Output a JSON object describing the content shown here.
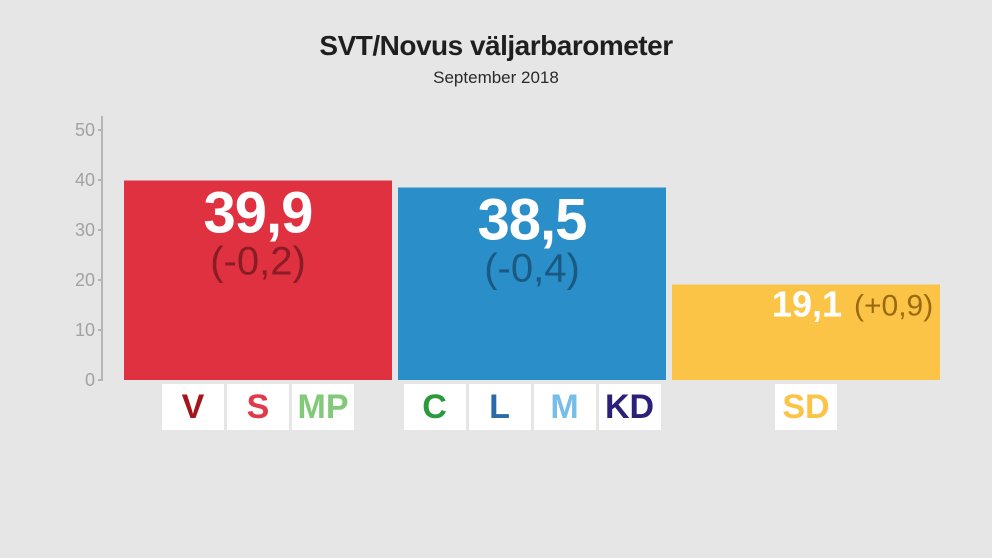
{
  "chart_data": {
    "type": "bar",
    "title": "SVT/Novus väljarbarometer",
    "subtitle": "September 2018",
    "xlabel": "",
    "ylabel": "",
    "ylim": [
      0,
      50
    ],
    "yticks": [
      "0",
      "10",
      "20",
      "30",
      "40",
      "50"
    ],
    "categories": [
      "V S MP",
      "C L M KD",
      "SD"
    ],
    "values": [
      39.9,
      38.5,
      19.1
    ],
    "value_labels": [
      "39,9",
      "38,5",
      "19,1"
    ],
    "change_labels": [
      "(-0,2)",
      "(-0,4)",
      "(+0,9)"
    ],
    "bar_colors": [
      "#e03140",
      "#2a8fc8",
      "#fcc446"
    ],
    "value_text_colors": [
      "#ffffff",
      "#ffffff",
      "#ffffff"
    ],
    "change_text_colors": [
      "#8a1c26",
      "#1a5a82",
      "#9a6a10"
    ],
    "grid": false,
    "legend": "none",
    "party_groups": [
      [
        {
          "name": "V",
          "color": "#a3151b"
        },
        {
          "name": "S",
          "color": "#e03a4a"
        },
        {
          "name": "MP",
          "color": "#83c97a"
        }
      ],
      [
        {
          "name": "C",
          "color": "#2a9a3b"
        },
        {
          "name": "L",
          "color": "#2a6aa8"
        },
        {
          "name": "M",
          "color": "#76bde7"
        },
        {
          "name": "KD",
          "color": "#2b1f7a"
        }
      ],
      [
        {
          "name": "SD",
          "color": "#fcc446"
        }
      ]
    ]
  }
}
